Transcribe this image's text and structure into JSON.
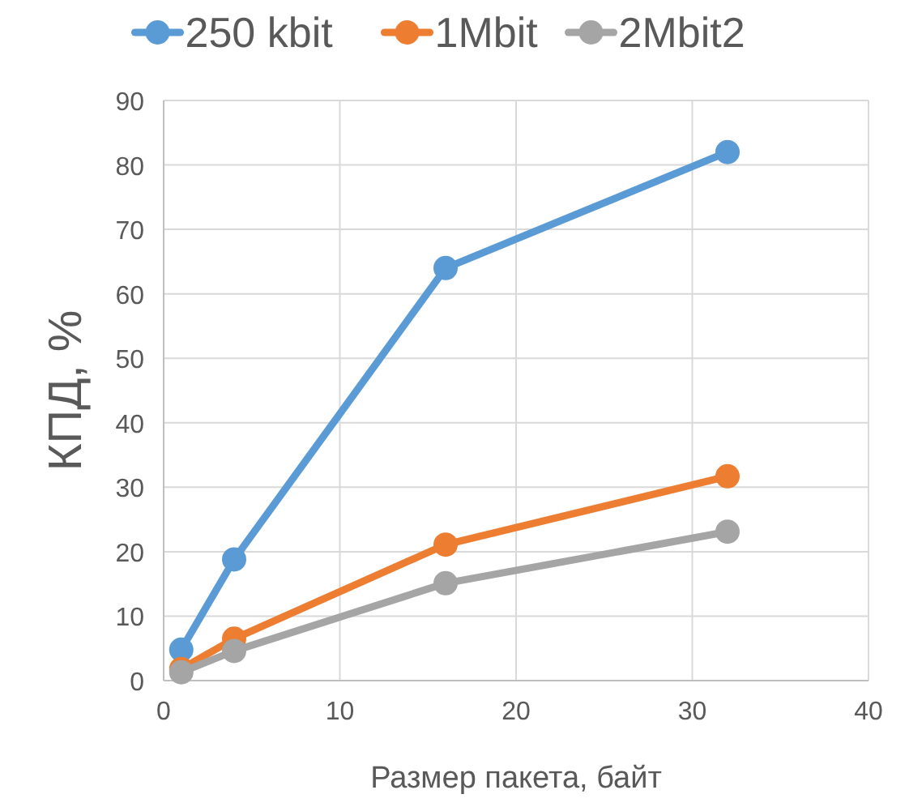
{
  "chart_data": {
    "type": "line",
    "xlabel": "Размер пакета, байт",
    "ylabel": "КПД, %",
    "x": [
      1,
      4,
      16,
      32
    ],
    "series": [
      {
        "name": "250 kbit",
        "color": "#5b9bd5",
        "values": [
          4.8,
          18.8,
          64,
          82
        ]
      },
      {
        "name": "1Mbit",
        "color": "#ed7d31",
        "values": [
          1.8,
          6.5,
          21.1,
          31.7
        ]
      },
      {
        "name": "2Mbit2",
        "color": "#a5a5a5",
        "values": [
          1.3,
          4.6,
          15.1,
          23.1
        ]
      }
    ],
    "xlim": [
      0,
      40
    ],
    "xticks": [
      0,
      10,
      20,
      30,
      40
    ],
    "ylim": [
      0,
      90
    ],
    "yticks": [
      0,
      10,
      20,
      30,
      40,
      50,
      60,
      70,
      80,
      90
    ],
    "grid": true,
    "legend": "top",
    "marker": "circle",
    "line_style": "solid"
  }
}
